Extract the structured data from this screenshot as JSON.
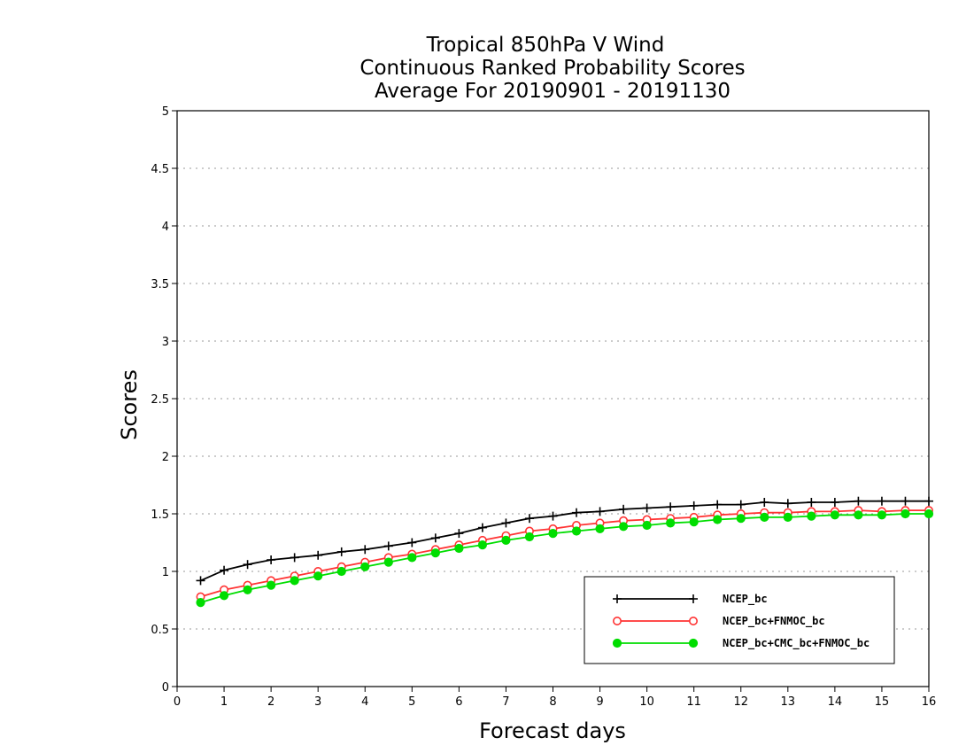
{
  "chart_data": {
    "type": "line",
    "title": [
      "Tropical 850hPa V Wind",
      "Continuous Ranked Probability Scores",
      "Average For 20190901 - 20191130"
    ],
    "xlabel": "Forecast days",
    "ylabel": "Scores",
    "xlim": [
      0,
      16
    ],
    "ylim": [
      0,
      5
    ],
    "xticks": [
      "0",
      "1",
      "2",
      "3",
      "4",
      "5",
      "6",
      "7",
      "8",
      "9",
      "10",
      "11",
      "12",
      "13",
      "14",
      "15",
      "16"
    ],
    "yticks": [
      "0",
      "0.5",
      "1",
      "1.5",
      "2",
      "2.5",
      "3",
      "3.5",
      "4",
      "4.5",
      "5"
    ],
    "grid": true,
    "legend_position": "lower-right",
    "x": [
      0.5,
      1,
      1.5,
      2,
      2.5,
      3,
      3.5,
      4,
      4.5,
      5,
      5.5,
      6,
      6.5,
      7,
      7.5,
      8,
      8.5,
      9,
      9.5,
      10,
      10.5,
      11,
      11.5,
      12,
      12.5,
      13,
      13.5,
      14,
      14.5,
      15,
      15.5,
      16
    ],
    "series": [
      {
        "name": "NCEP_bc",
        "color": "#000000",
        "marker": "plus",
        "values": [
          0.92,
          1.01,
          1.06,
          1.1,
          1.12,
          1.14,
          1.17,
          1.19,
          1.22,
          1.25,
          1.29,
          1.33,
          1.38,
          1.42,
          1.46,
          1.48,
          1.51,
          1.52,
          1.54,
          1.55,
          1.56,
          1.57,
          1.58,
          1.58,
          1.6,
          1.59,
          1.6,
          1.6,
          1.61,
          1.61,
          1.61,
          1.61
        ]
      },
      {
        "name": "NCEP_bc+FNMOC_bc",
        "color": "#ff3333",
        "marker": "open-circle",
        "values": [
          0.78,
          0.84,
          0.88,
          0.92,
          0.96,
          1.0,
          1.04,
          1.08,
          1.12,
          1.15,
          1.19,
          1.23,
          1.27,
          1.31,
          1.35,
          1.37,
          1.4,
          1.42,
          1.44,
          1.45,
          1.46,
          1.47,
          1.49,
          1.5,
          1.51,
          1.51,
          1.52,
          1.52,
          1.53,
          1.52,
          1.53,
          1.53
        ]
      },
      {
        "name": "NCEP_bc+CMC_bc+FNMOC_bc",
        "color": "#00dd00",
        "marker": "filled-circle",
        "values": [
          0.73,
          0.79,
          0.84,
          0.88,
          0.92,
          0.96,
          1.0,
          1.04,
          1.08,
          1.12,
          1.16,
          1.2,
          1.23,
          1.27,
          1.3,
          1.33,
          1.35,
          1.37,
          1.39,
          1.4,
          1.42,
          1.43,
          1.45,
          1.46,
          1.47,
          1.47,
          1.48,
          1.49,
          1.49,
          1.49,
          1.5,
          1.5
        ]
      }
    ]
  }
}
